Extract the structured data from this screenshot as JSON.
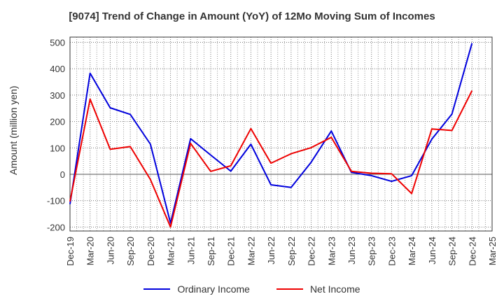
{
  "chart_data": {
    "type": "line",
    "title": "[9074]  Trend of Change in Amount (YoY) of 12Mo Moving Sum of Incomes",
    "xlabel": "",
    "ylabel": "Amount (million yen)",
    "ylim": [
      -215,
      520
    ],
    "yticks": [
      500,
      400,
      300,
      200,
      100,
      0,
      -100,
      -200
    ],
    "categories": [
      "Dec-19",
      "Mar-20",
      "Jun-20",
      "Sep-20",
      "Dec-20",
      "Mar-21",
      "Jun-21",
      "Sep-21",
      "Dec-21",
      "Mar-22",
      "Jun-22",
      "Sep-22",
      "Dec-22",
      "Mar-23",
      "Jun-23",
      "Sep-23",
      "Dec-23",
      "Mar-24",
      "Jun-24",
      "Sep-24",
      "Dec-24",
      "Mar-25"
    ],
    "series": [
      {
        "name": "Ordinary Income",
        "color": "#0000dd",
        "values": [
          -113,
          383,
          252,
          227,
          114,
          -185,
          135,
          73,
          12,
          114,
          -40,
          -50,
          46,
          164,
          7,
          -5,
          -27,
          -5,
          133,
          228,
          497,
          null
        ]
      },
      {
        "name": "Net Income",
        "color": "#ee0000",
        "values": [
          -103,
          285,
          95,
          105,
          -20,
          -200,
          117,
          11,
          32,
          173,
          42,
          78,
          101,
          140,
          11,
          4,
          2,
          -73,
          172,
          166,
          317,
          null
        ]
      }
    ],
    "grid": true,
    "legend": "bottom"
  }
}
